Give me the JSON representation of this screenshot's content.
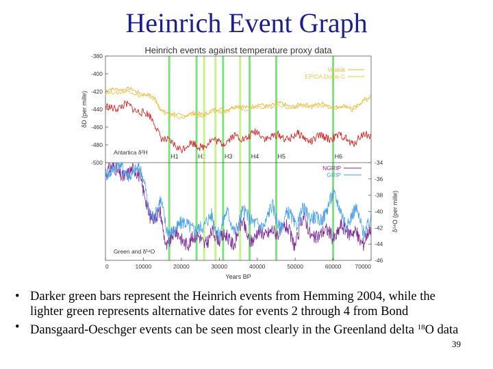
{
  "slide": {
    "title": "Heinrich Event Graph",
    "page_number": "39",
    "bullets": [
      {
        "text": "Darker green bars represent the Heinrich events from Hemming 2004, while the lighter green represents alternative dates for events 2 through 4 from Bond"
      },
      {
        "pre": "Dansgaard-Oeschger events can be seen most clearly in the Greenland delta ",
        "sup": "18",
        "post": "O data"
      }
    ]
  },
  "chart_data": {
    "type": "line",
    "title": "Heinrich events against temperature proxy data",
    "xlabel": "Years BP",
    "xlim": [
      0,
      70000
    ],
    "x_ticks": [
      0,
      10000,
      20000,
      30000,
      40000,
      50000,
      60000,
      70000
    ],
    "x_tick_labels": [
      "0",
      "10000",
      "20000",
      "30000",
      "40000",
      "50000",
      "60000",
      "70000"
    ],
    "colors": {
      "vostok": "#f0b030",
      "epica": "#e8c840",
      "antarctica_dd": "#d42020",
      "ngrip": "#7a2a9a",
      "grip": "#4aa0e8",
      "heinrich_dark": "#7ee07e",
      "heinrich_light": "#c8f08c"
    },
    "top_panel": {
      "ylabel": "δD (per mille)",
      "ylim": [
        -500,
        -380
      ],
      "y_ticks": [
        -380,
        -400,
        -420,
        -440,
        -460,
        -480,
        -500
      ],
      "y_tick_labels": [
        "-380",
        "-400",
        "-420",
        "-440",
        "-460",
        "-480",
        "-500"
      ],
      "panel_label": "Antartica δ²H",
      "legend": [
        "Vostok",
        "EPICA Dome C"
      ],
      "series": [
        {
          "name": "Vostok",
          "x": [
            0,
            3000,
            6000,
            9000,
            11000,
            13000,
            15000,
            17000,
            20000,
            25000,
            30000,
            35000,
            40000,
            45000,
            50000,
            55000,
            60000,
            65000,
            70000
          ],
          "y": [
            -420,
            -416,
            -418,
            -420,
            -424,
            -428,
            -440,
            -446,
            -446,
            -445,
            -440,
            -437,
            -436,
            -434,
            -436,
            -434,
            -436,
            -438,
            -426
          ]
        },
        {
          "name": "EPICA Dome C",
          "x": [
            0,
            3000,
            6000,
            9000,
            11000,
            13000,
            15000,
            17000,
            20000,
            25000,
            30000,
            35000,
            40000,
            45000,
            50000,
            55000,
            60000,
            65000,
            70000
          ],
          "y": [
            -423,
            -420,
            -421,
            -423,
            -426,
            -430,
            -442,
            -448,
            -448,
            -447,
            -443,
            -439,
            -438,
            -436,
            -438,
            -436,
            -438,
            -440,
            -428
          ]
        },
        {
          "name": "Antartica δ²H",
          "x": [
            0,
            3000,
            6000,
            9000,
            11000,
            13000,
            15000,
            17000,
            20000,
            25000,
            30000,
            35000,
            40000,
            45000,
            50000,
            55000,
            60000,
            65000,
            70000
          ],
          "y": [
            -440,
            -436,
            -438,
            -440,
            -448,
            -455,
            -472,
            -480,
            -482,
            -480,
            -476,
            -472,
            -468,
            -472,
            -470,
            -474,
            -470,
            -476,
            -468
          ]
        }
      ]
    },
    "bottom_panel": {
      "ylabel": "δ¹⁸O (per mille)",
      "ylim": [
        -46,
        -34
      ],
      "y_ticks": [
        -34,
        -36,
        -38,
        -40,
        -42,
        -44,
        -46
      ],
      "y_tick_labels": [
        "-34",
        "-36",
        "-38",
        "-40",
        "-42",
        "-44",
        "-46"
      ],
      "panel_label": "Green and δ¹⁸O",
      "legend": [
        "NGRIP",
        "GRIP"
      ],
      "series": [
        {
          "name": "NGRIP",
          "x": [
            0,
            3000,
            6000,
            9000,
            10500,
            11500,
            13000,
            14500,
            16000,
            18000,
            20000,
            23000,
            26000,
            28000,
            30000,
            32000,
            34000,
            36000,
            38000,
            40000,
            42000,
            44000,
            46000,
            48000,
            50000,
            52000,
            54000,
            56000,
            58000,
            60000,
            62000,
            64000,
            66000,
            68000,
            70000
          ],
          "y": [
            -35.2,
            -35.0,
            -35.3,
            -35.6,
            -37.5,
            -40.5,
            -41.5,
            -40.0,
            -43.8,
            -43.0,
            -43.5,
            -43.2,
            -44.0,
            -42.0,
            -44.2,
            -42.5,
            -43.8,
            -41.8,
            -43.2,
            -42.5,
            -43.5,
            -41.5,
            -43.0,
            -42.2,
            -43.6,
            -41.0,
            -43.0,
            -42.5,
            -42.8,
            -43.2,
            -41.2,
            -43.5,
            -42.0,
            -43.8,
            -42.5
          ]
        },
        {
          "name": "GRIP",
          "x": [
            0,
            3000,
            6000,
            9000,
            10500,
            11500,
            13000,
            14500,
            16000,
            18000,
            20000,
            23000,
            26000,
            28000,
            30000,
            32000,
            34000,
            36000,
            38000,
            40000,
            42000,
            44000,
            46000,
            48000,
            50000,
            52000,
            54000,
            56000,
            58000,
            60000,
            62000,
            64000,
            66000,
            68000,
            70000
          ],
          "y": [
            -34.8,
            -34.6,
            -34.9,
            -35.2,
            -37.0,
            -39.5,
            -40.5,
            -39.0,
            -42.2,
            -41.8,
            -42.0,
            -41.5,
            -42.5,
            -40.0,
            -42.8,
            -40.5,
            -42.0,
            -40.0,
            -41.5,
            -40.8,
            -42.0,
            -39.5,
            -41.5,
            -40.5,
            -42.0,
            -39.0,
            -41.5,
            -40.8,
            -39.8,
            -38.5,
            -39.5,
            -41.5,
            -40.2,
            -42.0,
            -40.8
          ]
        }
      ]
    },
    "heinrich_events": [
      {
        "label": "H1",
        "x": 16800,
        "kind": "dark"
      },
      {
        "label": "H2",
        "x": 24000,
        "kind": "dark"
      },
      {
        "label": "",
        "x": 26000,
        "kind": "light"
      },
      {
        "label": "",
        "x": 29000,
        "kind": "light"
      },
      {
        "label": "H3",
        "x": 31000,
        "kind": "dark"
      },
      {
        "label": "",
        "x": 35500,
        "kind": "light"
      },
      {
        "label": "H4",
        "x": 38000,
        "kind": "dark"
      },
      {
        "label": "H5",
        "x": 45000,
        "kind": "dark"
      },
      {
        "label": "H6",
        "x": 60000,
        "kind": "dark"
      }
    ]
  }
}
